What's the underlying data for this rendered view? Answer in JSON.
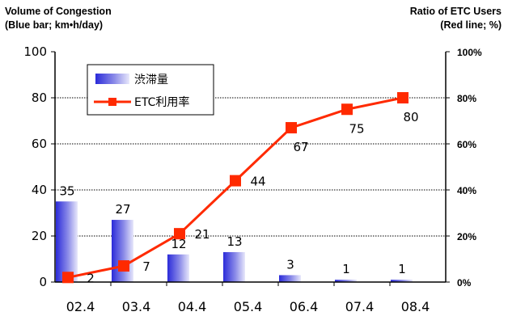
{
  "chart_data": {
    "type": "bar",
    "title_left": [
      "Volume of Congestion",
      "(Blue bar; km•h/day)"
    ],
    "title_right": [
      "Ratio of ETC Users",
      "(Red line; %)"
    ],
    "categories": [
      "02.4",
      "03.4",
      "04.4",
      "05.4",
      "06.4",
      "07.4",
      "08.4"
    ],
    "ylim": [
      0,
      100
    ],
    "y_ticks": [
      "0",
      "20",
      "40",
      "60",
      "80",
      "100"
    ],
    "y2lim": [
      0,
      100
    ],
    "y2_ticks": [
      "0%",
      "20%",
      "40%",
      "60%",
      "80%",
      "100%"
    ],
    "grid": true,
    "legend_position": "top-left",
    "series": [
      {
        "name": "渋滞量",
        "type": "bar",
        "axis": "left",
        "color": "#3a3adc",
        "values": [
          35,
          27,
          12,
          13,
          3,
          1,
          1
        ],
        "labels": [
          "35",
          "27",
          "12",
          "13",
          "3",
          "1",
          "1"
        ]
      },
      {
        "name": "ETC利用率",
        "type": "line",
        "axis": "right",
        "color": "#ff2a00",
        "values": [
          2,
          7,
          21,
          44,
          67,
          75,
          80
        ],
        "labels": [
          "2",
          "7",
          "21",
          "44",
          "67",
          "75",
          "80"
        ]
      }
    ]
  }
}
